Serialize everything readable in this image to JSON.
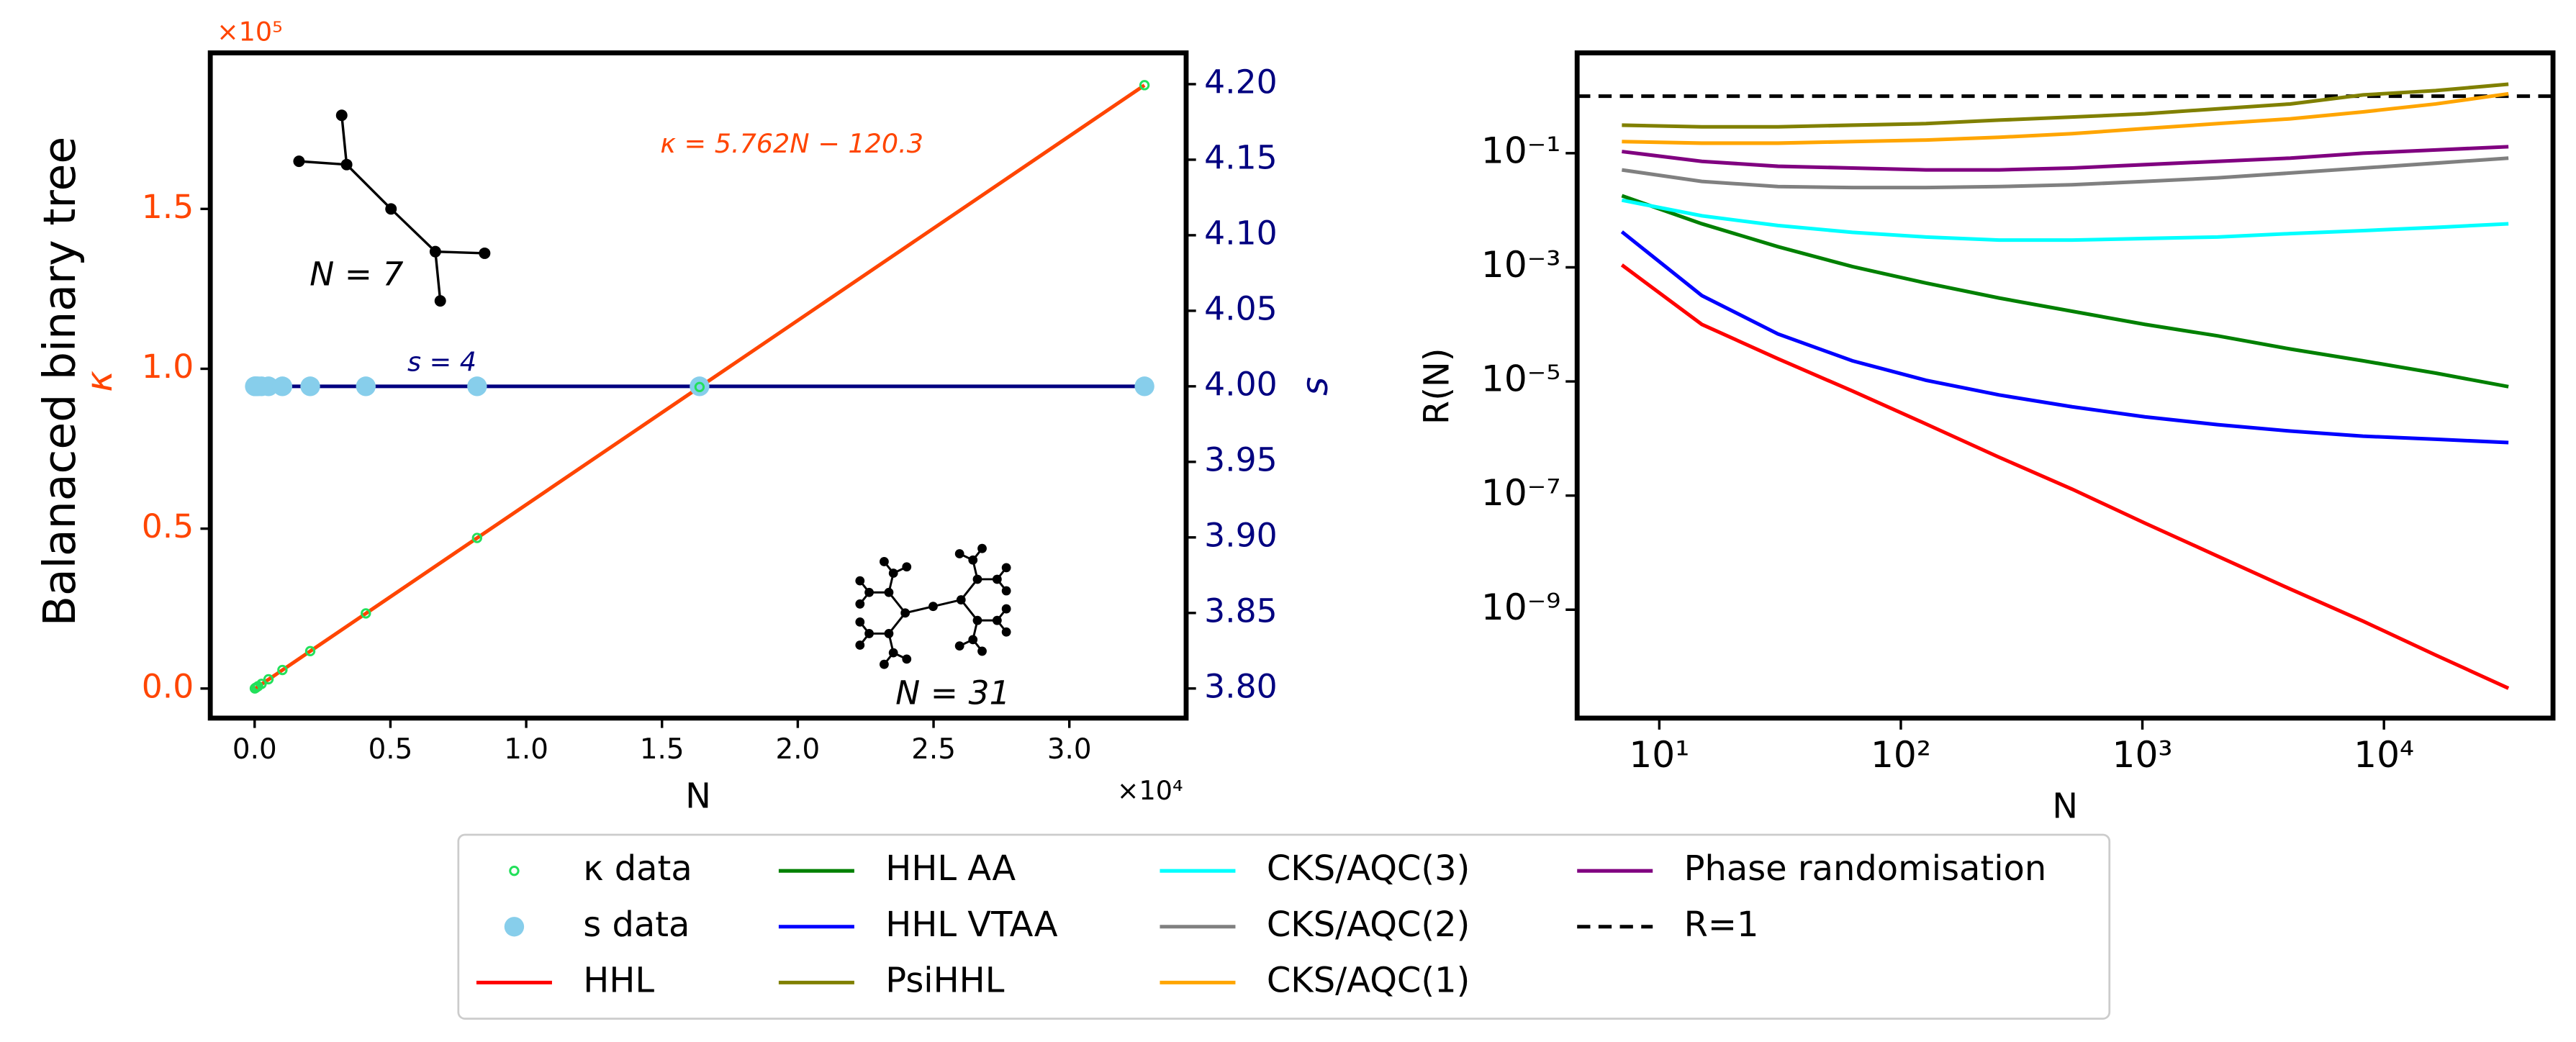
{
  "chart_data": [
    {
      "type": "scatter",
      "row_label": "Balanaced binary tree",
      "xlabel": "N",
      "ylabel": "κ",
      "y2label": "s",
      "x_offset_label": "×10⁴",
      "y_offset_label": "×10⁵",
      "ycolor": "#ff4500",
      "y2color": "#000080",
      "xlim": [
        -1633,
        34301
      ],
      "xticks": [
        {
          "value": 0,
          "label": "0.0"
        },
        {
          "value": 5000,
          "label": "0.5"
        },
        {
          "value": 10000,
          "label": "1.0"
        },
        {
          "value": 15000,
          "label": "1.5"
        },
        {
          "value": 20000,
          "label": "2.0"
        },
        {
          "value": 25000,
          "label": "2.5"
        },
        {
          "value": 30000,
          "label": "3.0"
        }
      ],
      "ylim": [
        -9250,
        198800
      ],
      "yticks": [
        {
          "value": 0,
          "label": "0.0"
        },
        {
          "value": 50000,
          "label": "0.5"
        },
        {
          "value": 100000,
          "label": "1.0"
        },
        {
          "value": 150000,
          "label": "1.5"
        }
      ],
      "y2lim": [
        3.7804,
        4.2207
      ],
      "y2ticks": [
        {
          "value": 3.8,
          "label": "3.80"
        },
        {
          "value": 3.85,
          "label": "3.85"
        },
        {
          "value": 3.9,
          "label": "3.90"
        },
        {
          "value": 3.95,
          "label": "3.95"
        },
        {
          "value": 4.0,
          "label": "4.00"
        },
        {
          "value": 4.05,
          "label": "4.05"
        },
        {
          "value": 4.1,
          "label": "4.10"
        },
        {
          "value": 4.15,
          "label": "4.15"
        },
        {
          "value": 4.2,
          "label": "4.20"
        }
      ],
      "x": [
        7,
        15,
        31,
        63,
        127,
        255,
        511,
        1023,
        2047,
        4095,
        8191,
        16383,
        32767
      ],
      "series": [
        {
          "name": "κ data",
          "color": "#22e05a",
          "marker": "hollow",
          "values": [
            30,
            75,
            170,
            350,
            720,
            1450,
            2900,
            5800,
            11700,
            23500,
            47100,
            94300,
            188700
          ]
        },
        {
          "name": "s data",
          "color": "#87ceeb",
          "marker": "filled",
          "axis": "y2",
          "values": [
            4,
            4,
            4,
            4,
            4,
            4,
            4,
            4,
            4,
            4,
            4,
            4,
            4
          ]
        }
      ],
      "fits": [
        {
          "label": "κ = 5.762N − 120.3",
          "color": "#ff4500",
          "x": [
            7,
            32767
          ],
          "values": [
            -80,
            188683
          ]
        },
        {
          "label": "s = 4",
          "color": "#000080",
          "axis": "y2",
          "x": [
            7,
            32767
          ],
          "values": [
            4,
            4
          ]
        }
      ],
      "insets": [
        {
          "label": "N = 7"
        },
        {
          "label": "N = 31"
        }
      ]
    },
    {
      "type": "line",
      "log_x": true,
      "log_y": true,
      "xlabel": "N",
      "ylabel": "R(N)",
      "xlim": [
        4.57,
        50100
      ],
      "xticks": [
        {
          "value": 10,
          "label": "10¹"
        },
        {
          "value": 100,
          "label": "10²"
        },
        {
          "value": 1000,
          "label": "10³"
        },
        {
          "value": 10000,
          "label": "10⁴"
        }
      ],
      "ylim": [
        1.26e-11,
        5.73
      ],
      "yticks": [
        {
          "value": 1e-09,
          "label": "10⁻⁹"
        },
        {
          "value": 1e-07,
          "label": "10⁻⁷"
        },
        {
          "value": 1e-05,
          "label": "10⁻⁵"
        },
        {
          "value": 0.001,
          "label": "10⁻³"
        },
        {
          "value": 0.1,
          "label": "10⁻¹"
        }
      ],
      "x": [
        7,
        15,
        31,
        63,
        127,
        255,
        511,
        1023,
        2047,
        4095,
        8191,
        16383,
        32767
      ],
      "series": [
        {
          "name": "HHL",
          "color": "#ff0000",
          "values": [
            0.0011,
            0.0001,
            2.5e-05,
            6.8e-06,
            1.8e-06,
            4.7e-07,
            1.3e-07,
            3.3e-08,
            8.7e-09,
            2.3e-09,
            6.3e-10,
            1.6e-10,
            4.2e-11
          ]
        },
        {
          "name": "HHL AA",
          "color": "#008000",
          "values": [
            0.018,
            0.0058,
            0.0023,
            0.00103,
            0.00053,
            0.00029,
            0.00017,
            0.0001,
            6.3e-05,
            3.7e-05,
            2.3e-05,
            1.4e-05,
            8.1e-06
          ]
        },
        {
          "name": "HHL VTAA",
          "color": "#0000ff",
          "values": [
            0.0042,
            0.00032,
            6.8e-05,
            2.3e-05,
            1.05e-05,
            5.8e-06,
            3.6e-06,
            2.4e-06,
            1.75e-06,
            1.35e-06,
            1.1e-06,
            9.7e-07,
            8.5e-07
          ]
        },
        {
          "name": "PsiHHL",
          "color": "#808000",
          "values": [
            0.31,
            0.29,
            0.29,
            0.31,
            0.33,
            0.38,
            0.43,
            0.49,
            0.6,
            0.73,
            1.05,
            1.25,
            1.62
          ]
        },
        {
          "name": "CKS/AQC(3)",
          "color": "#00ffff",
          "values": [
            0.015,
            0.008,
            0.0054,
            0.0041,
            0.0034,
            0.003,
            0.003,
            0.0032,
            0.0034,
            0.0039,
            0.0044,
            0.005,
            0.0058
          ]
        },
        {
          "name": "CKS/AQC(2)",
          "color": "#808080",
          "values": [
            0.051,
            0.032,
            0.026,
            0.025,
            0.025,
            0.026,
            0.028,
            0.032,
            0.037,
            0.045,
            0.055,
            0.067,
            0.082
          ]
        },
        {
          "name": "CKS/AQC(1)",
          "color": "#ffa500",
          "values": [
            0.16,
            0.15,
            0.15,
            0.16,
            0.17,
            0.19,
            0.22,
            0.27,
            0.33,
            0.4,
            0.53,
            0.73,
            1.1
          ]
        },
        {
          "name": "Phase randomisation",
          "color": "#800080",
          "values": [
            0.107,
            0.072,
            0.059,
            0.055,
            0.051,
            0.051,
            0.055,
            0.063,
            0.072,
            0.082,
            0.1,
            0.114,
            0.13
          ]
        }
      ],
      "hlines": [
        {
          "name": "R=1",
          "color": "#000000",
          "dash": true,
          "value": 1
        }
      ]
    }
  ]
}
